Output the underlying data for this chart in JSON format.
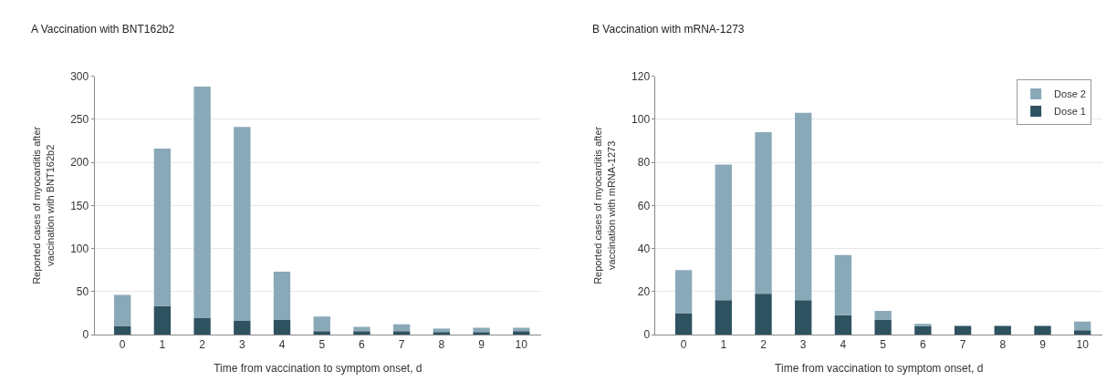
{
  "chart_data": [
    {
      "type": "bar",
      "title": "A Vaccination with BNT162b2",
      "xlabel": "Time from vaccination to symptom onset, d",
      "ylabel": "Reported cases of myocarditis after vaccination with BNT162b2",
      "categories": [
        "0",
        "1",
        "2",
        "3",
        "4",
        "5",
        "6",
        "7",
        "8",
        "9",
        "10"
      ],
      "stacked": true,
      "ylim": [
        0,
        300
      ],
      "yticks": [
        0,
        50,
        100,
        150,
        200,
        250,
        300
      ],
      "grid": "y",
      "legend": false,
      "series": [
        {
          "color": "#2e5260",
          "values": [
            10,
            33,
            19,
            16,
            17,
            4,
            4,
            4,
            3,
            3,
            4
          ]
        },
        {
          "color": "#8aa9b8",
          "values": [
            36,
            183,
            269,
            225,
            56,
            17,
            5,
            8,
            4,
            5,
            4
          ]
        }
      ]
    },
    {
      "type": "bar",
      "title": "B Vaccination with mRNA-1273",
      "xlabel": "Time from vaccination to symptom onset, d",
      "ylabel": "Reported cases of myocarditis after vaccination with mRNA-1273",
      "categories": [
        "0",
        "1",
        "2",
        "3",
        "4",
        "5",
        "6",
        "7",
        "8",
        "9",
        "10"
      ],
      "stacked": true,
      "ylim": [
        0,
        120
      ],
      "yticks": [
        0,
        20,
        40,
        60,
        80,
        100,
        120
      ],
      "grid": "y",
      "legend": "top right",
      "series": [
        {
          "name": "Dose 1",
          "color": "#2e5260",
          "values": [
            10,
            16,
            19,
            16,
            9,
            7,
            4,
            4,
            4,
            4,
            2
          ]
        },
        {
          "name": "Dose 2",
          "color": "#8aa9b8",
          "values": [
            20,
            63,
            75,
            87,
            28,
            4,
            1,
            0,
            0,
            0,
            4
          ]
        }
      ]
    }
  ]
}
